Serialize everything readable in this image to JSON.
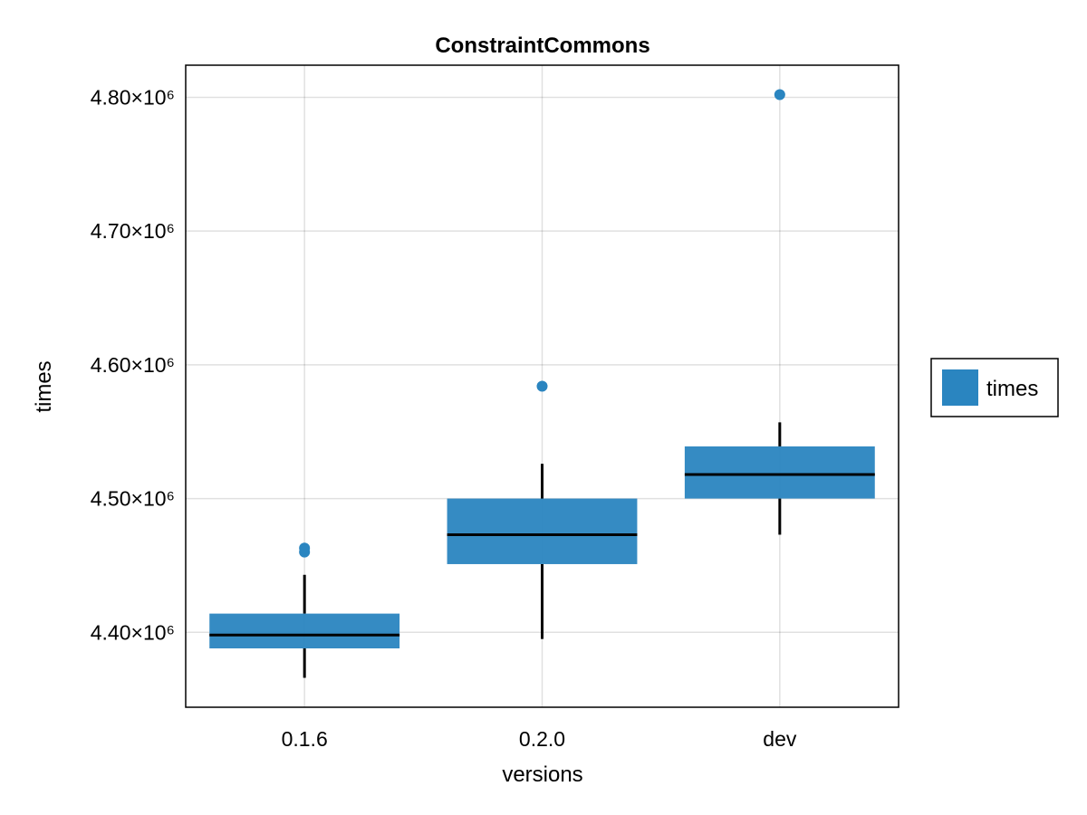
{
  "chart_data": {
    "type": "boxplot",
    "title": "ConstraintCommons",
    "xlabel": "versions",
    "ylabel": "times",
    "categories": [
      "0.1.6",
      "0.2.0",
      "dev"
    ],
    "y_ticks": [
      4400000,
      4500000,
      4600000,
      4700000,
      4800000
    ],
    "y_tick_labels": [
      "4.40×10⁶",
      "4.50×10⁶",
      "4.60×10⁶",
      "4.70×10⁶",
      "4.80×10⁶"
    ],
    "ylim": [
      4344000,
      4824000
    ],
    "grid": true,
    "legend": {
      "placement": "right",
      "entries": [
        "times"
      ]
    },
    "series": [
      {
        "name": "times",
        "color": "#2a85c0",
        "boxes": [
          {
            "category": "0.1.6",
            "whisker_low": 4366000,
            "q1": 4388000,
            "median": 4398000,
            "q3": 4414000,
            "whisker_high": 4443000,
            "outliers": [
              4460000,
              4463000
            ]
          },
          {
            "category": "0.2.0",
            "whisker_low": 4395000,
            "q1": 4451000,
            "median": 4473000,
            "q3": 4500000,
            "whisker_high": 4526000,
            "outliers": [
              4584000
            ]
          },
          {
            "category": "dev",
            "whisker_low": 4473000,
            "q1": 4500000,
            "median": 4518000,
            "q3": 4539000,
            "whisker_high": 4557000,
            "outliers": [
              4802000
            ]
          }
        ]
      }
    ]
  }
}
